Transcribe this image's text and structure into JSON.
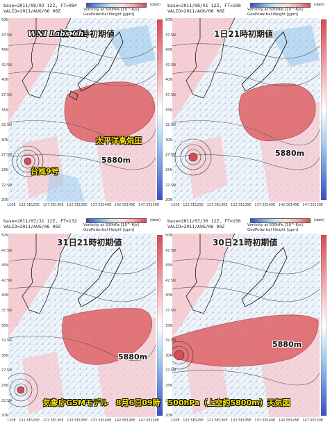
{
  "logo": "WNI Labs Ch.",
  "caption": "気象庁GSMモデル　8月6日09時　500hPa（上空約5800m）天気図",
  "labels": {
    "high": "太平洋高気圧",
    "typhoon": "台風9号",
    "height": "5880m"
  },
  "legend": {
    "vort": "Vorticity at 500hPa [10^-6/s]",
    "geo": "GeoPotential Height [gpm]",
    "unit": "(dam)"
  },
  "lat_ticks": [
    "50N",
    "47.5N",
    "45N",
    "42.5N",
    "40N",
    "37.5N",
    "35N",
    "32.5N",
    "30N",
    "27.5N",
    "25N",
    "22.5N",
    "20N"
  ],
  "lon_ticks": [
    "120E",
    "122.5E",
    "125E",
    "127.5E",
    "130E",
    "132.5E",
    "135E",
    "137.5E",
    "140E",
    "142.5E",
    "145E",
    "147.5E",
    "150E"
  ],
  "colors": {
    "high_fill": "#e06a6e",
    "pink": "#f7c6cc",
    "blue": "#9cc8ee",
    "coast": "#1a1a1a"
  },
  "panels": [
    {
      "title": "2日21時初期値",
      "base": "base=2011/08/02 12Z, FT=084",
      "valid": "VALID=2011/AUG/06 00Z"
    },
    {
      "title": "1日21時初期値",
      "base": "base=2011/08/01 12Z, FT=108",
      "valid": "VALID=2011/AUG/06 00Z"
    },
    {
      "title": "31日21時初期値",
      "base": "base=2011/07/31 12Z, FT=132",
      "valid": "VALID=2011/AUG/06 00Z"
    },
    {
      "title": "30日21時初期値",
      "base": "base=2011/07/30 12Z, FT=156",
      "valid": "VALID=2011/AUG/06 00Z"
    }
  ]
}
